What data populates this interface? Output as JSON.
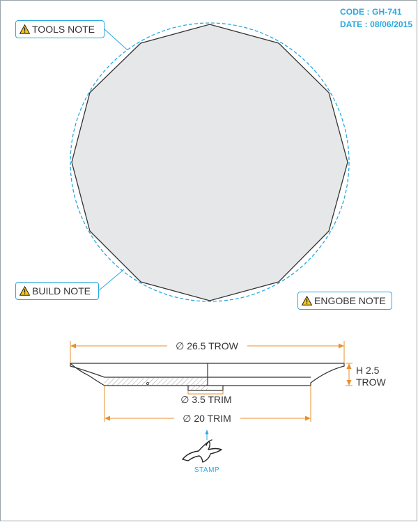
{
  "header": {
    "code": "CODE : GH-741",
    "date": "DATE : 08/06/2015"
  },
  "notes": {
    "tools": "TOOLS NOTE",
    "build": "BUILD NOTE",
    "engobe": "ENGOBE NOTE"
  },
  "dimensions": {
    "outer_diameter": "∅ 26.5 TROW",
    "height_line1": "H 2.5",
    "height_line2": "TROW",
    "inner_trim": "∅ 3.5 TRIM",
    "base_trim": "∅ 20 TRIM"
  },
  "stamp": {
    "label": "STAMP"
  },
  "colors": {
    "accent": "#29a8e0",
    "dimension": "#e8902a",
    "shape_fill": "#e6e7e8",
    "outline": "#333333"
  },
  "icons": {
    "warning": "warning-triangle-icon",
    "stamp": "bird-stamp-icon"
  }
}
